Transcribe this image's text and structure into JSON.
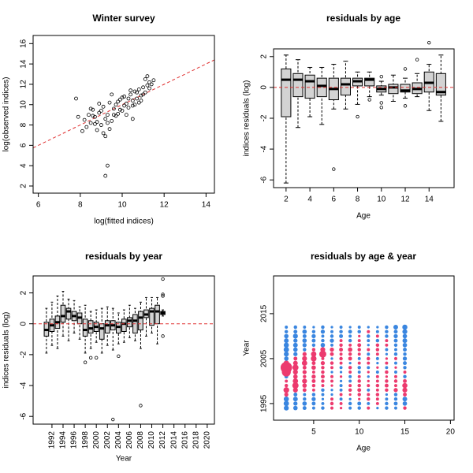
{
  "chart_data": {
    "charts": [
      {
        "type": "scatter",
        "title": "Winter survey",
        "x_label": "log(fitted indices)",
        "y_label": "log(observed indices)",
        "xlim": [
          5.75,
          14.4
        ],
        "ylim": [
          1.3,
          16.8
        ],
        "xticks": [
          6,
          8,
          10,
          12,
          14
        ],
        "yticks": [
          2,
          4,
          6,
          8,
          10,
          12,
          14,
          16
        ],
        "abline": {
          "intercept": 0,
          "slope": 1
        },
        "line_color": "#e03030",
        "color": "#000000",
        "x": [
          8.2,
          8.4,
          8.5,
          8.6,
          8.7,
          8.8,
          8.9,
          9.0,
          9.1,
          9.2,
          9.3,
          9.4,
          9.5,
          9.6,
          9.7,
          9.8,
          9.9,
          10.0,
          10.1,
          10.2,
          10.3,
          10.4,
          10.5,
          10.6,
          10.7,
          10.8,
          10.9,
          11.0,
          11.1,
          11.2,
          11.3,
          11.4,
          8.3,
          8.5,
          8.7,
          8.9,
          9.1,
          9.3,
          9.5,
          9.7,
          9.9,
          10.1,
          10.3,
          10.5,
          10.7,
          10.9,
          11.1,
          11.3,
          8.6,
          9.0,
          9.4,
          9.8,
          10.2,
          10.6,
          11.0,
          8.8,
          9.2,
          9.6,
          10.0,
          10.4,
          10.8,
          11.2,
          9.3,
          9.2,
          7.8,
          7.9,
          8.1,
          10.5,
          11.5
        ],
        "y": [
          8.5,
          9.0,
          8.2,
          9.5,
          8.8,
          7.5,
          9.2,
          8.0,
          9.8,
          8.6,
          9.0,
          10.2,
          8.4,
          9.6,
          10.0,
          9.1,
          10.5,
          9.4,
          10.8,
          10.1,
          9.7,
          11.0,
          10.4,
          11.3,
          10.6,
          11.5,
          10.9,
          11.7,
          11.2,
          11.9,
          12.2,
          12.0,
          7.8,
          9.6,
          8.1,
          10.1,
          7.2,
          8.2,
          11.0,
          8.9,
          9.5,
          9.9,
          10.6,
          9.9,
          11.2,
          10.4,
          12.5,
          11.6,
          8.9,
          9.4,
          7.6,
          10.3,
          9.0,
          10.0,
          11.0,
          8.3,
          6.9,
          9.0,
          10.7,
          11.4,
          10.2,
          12.8,
          4.0,
          3.0,
          10.6,
          8.8,
          7.4,
          8.6,
          12.4
        ]
      },
      {
        "type": "box",
        "title": "residuals by age",
        "x_label": "Age",
        "y_label": "indices residuals (log)",
        "xlim": [
          0.95,
          16.1
        ],
        "ylim": [
          -6.5,
          2.5
        ],
        "xticks": [
          2,
          4,
          6,
          8,
          10,
          12,
          14
        ],
        "yticks": [
          -6,
          -4,
          -2,
          0,
          2
        ],
        "hline": 0,
        "line_color": "#e03030",
        "color": "#d3d3d3",
        "x": [
          2,
          3,
          4,
          5,
          6,
          7,
          8,
          9,
          10,
          11,
          12,
          13,
          14,
          15
        ],
        "boxes": [
          {
            "min": -6.2,
            "q1": -1.9,
            "median": 0.5,
            "q3": 1.2,
            "max": 2.1,
            "outliers": []
          },
          {
            "min": -2.6,
            "q1": -0.6,
            "median": 0.5,
            "q3": 0.9,
            "max": 1.8,
            "outliers": []
          },
          {
            "min": -1.9,
            "q1": -0.7,
            "median": 0.4,
            "q3": 0.8,
            "max": 1.3,
            "outliers": []
          },
          {
            "min": -2.4,
            "q1": -0.6,
            "median": 0.1,
            "q3": 0.6,
            "max": 1.3,
            "outliers": []
          },
          {
            "min": -1.4,
            "q1": -0.8,
            "median": -0.1,
            "q3": 0.6,
            "max": 1.5,
            "outliers": [
              -5.3
            ]
          },
          {
            "min": -1.4,
            "q1": -0.5,
            "median": 0.2,
            "q3": 0.6,
            "max": 1.7,
            "outliers": []
          },
          {
            "min": -1.1,
            "q1": 0.1,
            "median": 0.4,
            "q3": 0.6,
            "max": 1.0,
            "outliers": [
              -1.9
            ]
          },
          {
            "min": -0.6,
            "q1": 0.1,
            "median": 0.5,
            "q3": 0.6,
            "max": 1.0,
            "outliers": [
              -0.8
            ]
          },
          {
            "min": -0.5,
            "q1": -0.3,
            "median": -0.1,
            "q3": 0.1,
            "max": 0.4,
            "outliers": [
              -1.0,
              -1.3,
              0.7
            ]
          },
          {
            "min": -0.9,
            "q1": -0.4,
            "median": 0.0,
            "q3": 0.2,
            "max": 0.8,
            "outliers": []
          },
          {
            "min": -0.7,
            "q1": -0.3,
            "median": -0.2,
            "q3": 0.2,
            "max": 0.6,
            "outliers": [
              1.2,
              -1.2
            ]
          },
          {
            "min": -0.6,
            "q1": -0.4,
            "median": -0.1,
            "q3": 0.3,
            "max": 0.9,
            "outliers": [
              1.8
            ]
          },
          {
            "min": -1.5,
            "q1": -0.3,
            "median": 0.3,
            "q3": 1.0,
            "max": 1.5,
            "outliers": [
              2.9
            ]
          },
          {
            "min": -2.2,
            "q1": -0.5,
            "median": -0.3,
            "q3": 0.9,
            "max": 2.1,
            "outliers": []
          }
        ]
      },
      {
        "type": "box",
        "title": "residuals by year",
        "x_label": "Year",
        "y_label": "indices residuals (log)",
        "rotate_xticks": true,
        "xlim": [
          1988.6,
          2021.3
        ],
        "ylim": [
          -6.5,
          3.1
        ],
        "xticks": [
          1992,
          1994,
          1996,
          1998,
          2000,
          2002,
          2004,
          2006,
          2008,
          2010,
          2012,
          2014,
          2016,
          2018,
          2020
        ],
        "yticks": [
          -6,
          -4,
          -2,
          0,
          2
        ],
        "hline": 0,
        "line_color": "#e03030",
        "color": "#d3d3d3",
        "x": [
          1991,
          1992,
          1993,
          1994,
          1995,
          1996,
          1997,
          1998,
          1999,
          2000,
          2001,
          2002,
          2003,
          2004,
          2005,
          2006,
          2007,
          2008,
          2009,
          2010,
          2011,
          2012
        ],
        "boxes": [
          {
            "min": -1.9,
            "q1": -0.8,
            "median": -0.4,
            "q3": 0.1,
            "max": 1.0,
            "outliers": []
          },
          {
            "min": -1.4,
            "q1": -0.5,
            "median": -0.1,
            "q3": 0.3,
            "max": 1.4,
            "outliers": []
          },
          {
            "min": -1.6,
            "q1": -0.3,
            "median": 0.1,
            "q3": 0.5,
            "max": 1.8,
            "outliers": []
          },
          {
            "min": -0.8,
            "q1": 0.1,
            "median": 0.5,
            "q3": 1.2,
            "max": 2.1,
            "outliers": []
          },
          {
            "min": -1.1,
            "q1": 0.3,
            "median": 0.8,
            "q3": 1.0,
            "max": 1.6,
            "outliers": []
          },
          {
            "min": -0.6,
            "q1": 0.2,
            "median": 0.5,
            "q3": 0.8,
            "max": 1.5,
            "outliers": []
          },
          {
            "min": -1.0,
            "q1": 0.0,
            "median": 0.4,
            "q3": 0.7,
            "max": 1.1,
            "outliers": []
          },
          {
            "min": -1.9,
            "q1": -0.8,
            "median": -0.4,
            "q3": 0.3,
            "max": 1.2,
            "outliers": [
              -2.5
            ]
          },
          {
            "min": -1.6,
            "q1": -0.6,
            "median": -0.3,
            "q3": 0.2,
            "max": 0.8,
            "outliers": [
              -2.2
            ]
          },
          {
            "min": -1.2,
            "q1": -0.5,
            "median": -0.2,
            "q3": 0.1,
            "max": 0.9,
            "outliers": [
              -2.2
            ]
          },
          {
            "min": -1.9,
            "q1": -1.0,
            "median": -0.3,
            "q3": 0.0,
            "max": 1.0,
            "outliers": []
          },
          {
            "min": -1.4,
            "q1": -0.6,
            "median": -0.1,
            "q3": 0.2,
            "max": 1.1,
            "outliers": []
          },
          {
            "min": -1.7,
            "q1": -0.4,
            "median": -0.1,
            "q3": 0.2,
            "max": 1.0,
            "outliers": [
              -6.2
            ]
          },
          {
            "min": -1.3,
            "q1": -0.6,
            "median": -0.2,
            "q3": 0.1,
            "max": 0.7,
            "outliers": [
              -2.1
            ]
          },
          {
            "min": -1.2,
            "q1": -0.5,
            "median": 0.0,
            "q3": 0.3,
            "max": 0.9,
            "outliers": []
          },
          {
            "min": -0.9,
            "q1": -0.2,
            "median": 0.2,
            "q3": 0.4,
            "max": 1.2,
            "outliers": []
          },
          {
            "min": -1.1,
            "q1": -0.6,
            "median": 0.2,
            "q3": 0.6,
            "max": 1.0,
            "outliers": []
          },
          {
            "min": -1.6,
            "q1": -0.4,
            "median": 0.4,
            "q3": 0.8,
            "max": 1.4,
            "outliers": [
              -5.3
            ]
          },
          {
            "min": -0.8,
            "q1": 0.4,
            "median": 0.6,
            "q3": 0.9,
            "max": 1.7,
            "outliers": []
          },
          {
            "min": -0.6,
            "q1": -0.1,
            "median": 0.8,
            "q3": 1.0,
            "max": 1.7,
            "outliers": []
          },
          {
            "min": -1.3,
            "q1": 0.0,
            "median": 0.8,
            "q3": 1.2,
            "max": 1.7,
            "outliers": []
          },
          {
            "min": 0.5,
            "q1": 0.6,
            "median": 0.7,
            "q3": 0.8,
            "max": 0.9,
            "outliers": [
              2.9,
              1.9,
              1.8,
              -0.8
            ]
          }
        ]
      },
      {
        "type": "bubble",
        "title": "residuals by age & year",
        "x_label": "Age",
        "y_label": "Year",
        "xlim": [
          0.6,
          20.4
        ],
        "ylim": [
          1991.3,
          2023.4
        ],
        "xticks": [
          5,
          10,
          15,
          20
        ],
        "yticks": [
          1995,
          2005,
          2015
        ],
        "positive_color": "#3a86e0",
        "negative_color": "#ec3a6e",
        "x": [
          2,
          3,
          4,
          5,
          6,
          7,
          8,
          9,
          10,
          11,
          12,
          13,
          14,
          15
        ],
        "y": [
          1994,
          1995,
          1996,
          1997,
          1998,
          1999,
          2000,
          2001,
          2002,
          2003,
          2004,
          2005,
          2006,
          2007,
          2008,
          2009,
          2010,
          2011,
          2012
        ],
        "values": [
          [
            0.8,
            0.6,
            0.4,
            0.2,
            0.3,
            -0.2,
            -0.1,
            0.2,
            0.3,
            -0.2,
            0.1,
            0.3,
            0.2,
            -0.3
          ],
          [
            1.0,
            0.5,
            0.6,
            0.4,
            0.2,
            -0.3,
            -0.2,
            0.3,
            0.4,
            0.2,
            -0.2,
            0.3,
            0.4,
            0.6
          ],
          [
            0.9,
            0.7,
            0.3,
            0.5,
            0.1,
            -0.2,
            0.2,
            0.1,
            -0.1,
            -0.3,
            -0.2,
            0.2,
            0.3,
            0.7
          ],
          [
            -0.5,
            0.4,
            0.2,
            0.3,
            0.2,
            0.1,
            -0.2,
            -0.1,
            -0.3,
            -0.2,
            -0.3,
            0.1,
            0.3,
            -0.4
          ],
          [
            -1.2,
            -0.8,
            -0.4,
            -0.2,
            0.3,
            0.1,
            0.2,
            -0.3,
            -0.4,
            0.2,
            -0.2,
            -0.3,
            -0.5,
            -0.8
          ],
          [
            -0.3,
            -1.5,
            -0.6,
            -0.3,
            -0.2,
            -0.1,
            0.2,
            -0.2,
            -0.3,
            -0.2,
            -0.3,
            -0.4,
            -0.2,
            -0.9
          ],
          [
            -0.2,
            -1.0,
            -0.8,
            -0.4,
            -0.3,
            -0.2,
            0.1,
            0.2,
            -0.3,
            -0.1,
            -0.2,
            -0.3,
            -0.3,
            -0.4
          ],
          [
            0.4,
            -0.6,
            -0.3,
            -0.5,
            -0.4,
            -0.2,
            -0.1,
            0.2,
            -0.2,
            0.1,
            -0.2,
            -0.1,
            -0.2,
            0.3
          ],
          [
            -3.5,
            -0.8,
            -0.5,
            -0.2,
            -0.3,
            0.1,
            0.1,
            -0.2,
            0.2,
            -0.1,
            0.2,
            -0.3,
            0.2,
            -0.2
          ],
          [
            -6.2,
            -1.4,
            -0.4,
            -0.6,
            -0.3,
            -0.2,
            0.2,
            -0.3,
            0.3,
            0.2,
            -0.1,
            0.2,
            -0.1,
            0.3
          ],
          [
            -1.0,
            -0.7,
            -1.0,
            -0.4,
            -0.5,
            -0.3,
            -0.2,
            0.1,
            -0.2,
            -0.2,
            0.1,
            -0.2,
            0.2,
            0.4
          ],
          [
            0.6,
            -0.4,
            -0.8,
            -1.2,
            -0.2,
            0.1,
            -0.3,
            -0.4,
            0.2,
            -0.3,
            0.2,
            -0.1,
            -0.2,
            0.5
          ],
          [
            0.8,
            0.5,
            -0.5,
            -1.0,
            -2.0,
            -0.4,
            -0.2,
            -0.3,
            -0.2,
            0.2,
            -0.2,
            0.1,
            0.3,
            0.3
          ],
          [
            1.0,
            0.6,
            0.3,
            -0.3,
            -0.8,
            -0.5,
            -0.4,
            -0.6,
            -0.3,
            -0.2,
            -0.3,
            0.2,
            0.2,
            0.4
          ],
          [
            0.9,
            0.7,
            0.5,
            0.3,
            0.6,
            0.2,
            -0.3,
            -0.2,
            -0.4,
            0.1,
            -0.3,
            -0.2,
            0.3,
            0.6
          ],
          [
            0.7,
            0.5,
            0.6,
            0.4,
            0.3,
            0.5,
            -0.2,
            0.3,
            -0.2,
            0.2,
            0.3,
            -0.2,
            0.4,
            0.7
          ],
          [
            0.6,
            0.8,
            0.4,
            0.5,
            0.2,
            0.3,
            0.4,
            0.2,
            -0.1,
            0.3,
            -0.2,
            0.3,
            0.5,
            0.6
          ],
          [
            0.3,
            0.4,
            0.6,
            0.3,
            0.5,
            0.2,
            0.3,
            0.4,
            0.3,
            -0.2,
            0.2,
            0.3,
            0.4,
            0.8
          ],
          [
            0.2,
            0.3,
            0.2,
            0.1,
            0.3,
            0.1,
            0.2,
            0.1,
            0.2,
            0.1,
            0.1,
            0.3,
            0.7,
            0.9
          ]
        ]
      }
    ]
  }
}
